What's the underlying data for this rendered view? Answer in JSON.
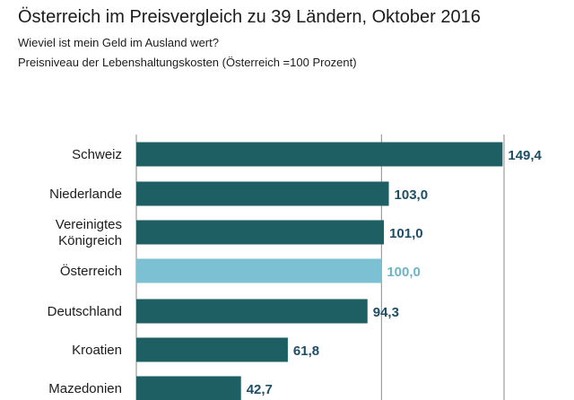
{
  "chart_data": {
    "type": "bar",
    "orientation": "horizontal",
    "title": "Österreich im Preisvergleich zu 39 Ländern, Oktober 2016",
    "subtitle": "Wieviel ist mein Geld im Ausland wert?",
    "subtitle2": "Preisniveau der Lebenshaltungskosten (Österreich =100 Prozent)",
    "categories": [
      [
        "Schweiz"
      ],
      [
        "Niederlande"
      ],
      [
        "Vereinigtes",
        "Königreich"
      ],
      [
        "Österreich"
      ],
      [
        "Deutschland"
      ],
      [
        "Kroatien"
      ],
      [
        "Mazedonien"
      ]
    ],
    "values": [
      149.4,
      103.0,
      101.0,
      100.0,
      94.3,
      61.8,
      42.7
    ],
    "value_labels": [
      "149,4",
      "103,0",
      "101,0",
      "100,0",
      "94,3",
      "61,8",
      "42,7"
    ],
    "highlight_index": 3,
    "reference_lines": [
      100,
      150
    ],
    "xlim": [
      0,
      150
    ],
    "bar_color": "#1d5f62",
    "highlight_color": "#7cc0d3",
    "label_color": "#1d4e66",
    "highlight_label_color": "#6eb3c8"
  }
}
